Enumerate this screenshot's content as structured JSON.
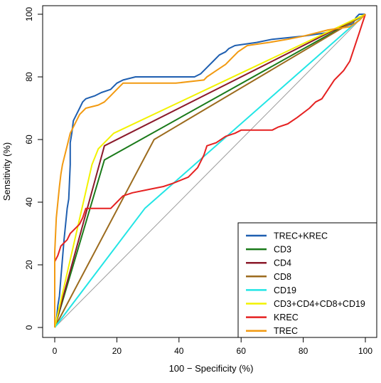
{
  "chart_data": {
    "type": "line",
    "xlabel": "100 − Specificity (%)",
    "ylabel": "Sensitivity (%)",
    "xlim": [
      0,
      100
    ],
    "ylim": [
      0,
      100
    ],
    "x_ticks": [
      "0",
      "20",
      "40",
      "60",
      "80",
      "100"
    ],
    "y_ticks": [
      "0",
      "20",
      "40",
      "60",
      "80",
      "100"
    ],
    "grid": false,
    "legend_position": "bottom-right",
    "diagonal_reference": true,
    "series": [
      {
        "name": "TREC+KREC",
        "color": "#1f5fb0",
        "points": [
          [
            0,
            0
          ],
          [
            0.5,
            2
          ],
          [
            1,
            7
          ],
          [
            1.5,
            10
          ],
          [
            2,
            16
          ],
          [
            2.5,
            22
          ],
          [
            3,
            28
          ],
          [
            3.5,
            33
          ],
          [
            4,
            38
          ],
          [
            4.5,
            41
          ],
          [
            5,
            52
          ],
          [
            5,
            59
          ],
          [
            5.5,
            62
          ],
          [
            6,
            66
          ],
          [
            7,
            68
          ],
          [
            8,
            70
          ],
          [
            9,
            72
          ],
          [
            10,
            73
          ],
          [
            13,
            74
          ],
          [
            15,
            75
          ],
          [
            18,
            76
          ],
          [
            19,
            77
          ],
          [
            20,
            78
          ],
          [
            22,
            79
          ],
          [
            26,
            80
          ],
          [
            34,
            80
          ],
          [
            45,
            80
          ],
          [
            47,
            81
          ],
          [
            49,
            83
          ],
          [
            51,
            85
          ],
          [
            53,
            87
          ],
          [
            55,
            88
          ],
          [
            56,
            89
          ],
          [
            58,
            90
          ],
          [
            65,
            91
          ],
          [
            70,
            92
          ],
          [
            80,
            93
          ],
          [
            87,
            94
          ],
          [
            96,
            97
          ],
          [
            97,
            99
          ],
          [
            98,
            100
          ],
          [
            100,
            100
          ]
        ]
      },
      {
        "name": "CD3",
        "color": "#1a7a1a",
        "points": [
          [
            0,
            0
          ],
          [
            16,
            53.5
          ],
          [
            100,
            100
          ]
        ]
      },
      {
        "name": "CD4",
        "color": "#8b1a2b",
        "points": [
          [
            0,
            0
          ],
          [
            16,
            58
          ],
          [
            100,
            100
          ]
        ]
      },
      {
        "name": "CD8",
        "color": "#9c6b1e",
        "points": [
          [
            0,
            0
          ],
          [
            32,
            60
          ],
          [
            100,
            100
          ]
        ]
      },
      {
        "name": "CD19",
        "color": "#22e5e5",
        "points": [
          [
            0,
            0
          ],
          [
            29,
            38
          ],
          [
            100,
            100
          ]
        ]
      },
      {
        "name": "CD3+CD4+CD8+CD19",
        "color": "#f2f200",
        "points": [
          [
            0,
            0
          ],
          [
            12,
            52
          ],
          [
            14,
            57
          ],
          [
            19,
            62
          ],
          [
            100,
            100
          ]
        ]
      },
      {
        "name": "KREC",
        "color": "#e52121",
        "points": [
          [
            0,
            21
          ],
          [
            1,
            23
          ],
          [
            2,
            26
          ],
          [
            4,
            28
          ],
          [
            5,
            30
          ],
          [
            7,
            32
          ],
          [
            8,
            33
          ],
          [
            9,
            35
          ],
          [
            10,
            38
          ],
          [
            18,
            38
          ],
          [
            20,
            40
          ],
          [
            22,
            42
          ],
          [
            25,
            43
          ],
          [
            30,
            44
          ],
          [
            35,
            45
          ],
          [
            38,
            46
          ],
          [
            43,
            48
          ],
          [
            46,
            51
          ],
          [
            48,
            55
          ],
          [
            49,
            58
          ],
          [
            52,
            59
          ],
          [
            55,
            61
          ],
          [
            58,
            62
          ],
          [
            60,
            63
          ],
          [
            70,
            63
          ],
          [
            72,
            64
          ],
          [
            75,
            65
          ],
          [
            78,
            67
          ],
          [
            82,
            70
          ],
          [
            84,
            72
          ],
          [
            86,
            73
          ],
          [
            88,
            76
          ],
          [
            90,
            79
          ],
          [
            91,
            80
          ],
          [
            93,
            82
          ],
          [
            95,
            85
          ],
          [
            96,
            88
          ],
          [
            97,
            91
          ],
          [
            98,
            94
          ],
          [
            99,
            97
          ],
          [
            100,
            100
          ]
        ]
      },
      {
        "name": "TREC",
        "color": "#f29a11",
        "points": [
          [
            0,
            0
          ],
          [
            0,
            24
          ],
          [
            0.5,
            35
          ],
          [
            1,
            40
          ],
          [
            1.5,
            45
          ],
          [
            2,
            49
          ],
          [
            2.5,
            52
          ],
          [
            3,
            54
          ],
          [
            4,
            58
          ],
          [
            5,
            62
          ],
          [
            6,
            64
          ],
          [
            7,
            66
          ],
          [
            8,
            68
          ],
          [
            10,
            70
          ],
          [
            14,
            71
          ],
          [
            16,
            72
          ],
          [
            18,
            74
          ],
          [
            20,
            76
          ],
          [
            22,
            78
          ],
          [
            30,
            78
          ],
          [
            39,
            78
          ],
          [
            48,
            79
          ],
          [
            49,
            80
          ],
          [
            52,
            82
          ],
          [
            55,
            84
          ],
          [
            57,
            86
          ],
          [
            59,
            88
          ],
          [
            62,
            90
          ],
          [
            69,
            91
          ],
          [
            75,
            92
          ],
          [
            80,
            93
          ],
          [
            88,
            95
          ],
          [
            95,
            96
          ],
          [
            98,
            98
          ],
          [
            100,
            100
          ]
        ]
      }
    ]
  }
}
